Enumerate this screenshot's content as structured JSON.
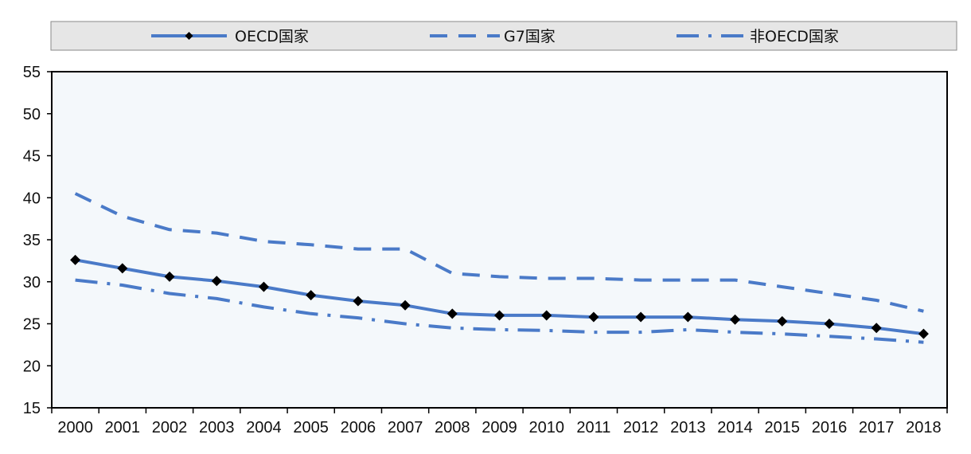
{
  "chart_data": {
    "type": "line",
    "title": "",
    "xlabel": "",
    "ylabel": "",
    "ylim": [
      15,
      55
    ],
    "yticks": [
      15,
      20,
      25,
      30,
      35,
      40,
      45,
      50,
      55
    ],
    "categories": [
      "2000",
      "2001",
      "2002",
      "2003",
      "2004",
      "2005",
      "2006",
      "2007",
      "2008",
      "2009",
      "2010",
      "2011",
      "2012",
      "2013",
      "2014",
      "2015",
      "2016",
      "2017",
      "2018"
    ],
    "grid": false,
    "legend_position": "top",
    "series": [
      {
        "name": "OECD国家",
        "style": "solid-with-diamond-markers",
        "color": "#4a7ac8",
        "values": [
          32.6,
          31.6,
          30.6,
          30.1,
          29.4,
          28.4,
          27.7,
          27.2,
          26.2,
          26.0,
          26.0,
          25.8,
          25.8,
          25.8,
          25.5,
          25.3,
          25.0,
          24.5,
          23.8
        ]
      },
      {
        "name": "G7国家",
        "style": "dashed",
        "color": "#4a7ac8",
        "values": [
          40.5,
          37.8,
          36.2,
          35.8,
          34.8,
          34.4,
          33.9,
          33.9,
          31.0,
          30.6,
          30.4,
          30.4,
          30.2,
          30.2,
          30.2,
          29.4,
          28.6,
          27.8,
          26.5
        ]
      },
      {
        "name": "非OECD国家",
        "style": "dash-dot",
        "color": "#4a7ac8",
        "values": [
          30.2,
          29.6,
          28.6,
          28.0,
          27.0,
          26.2,
          25.7,
          25.0,
          24.5,
          24.3,
          24.2,
          24.0,
          24.0,
          24.3,
          24.0,
          23.8,
          23.5,
          23.2,
          22.8
        ]
      }
    ]
  },
  "colors": {
    "plot_background": "#f4f8fb",
    "legend_background": "#e6e6e6",
    "series_line": "#4a7ac8",
    "marker": "#000000"
  }
}
